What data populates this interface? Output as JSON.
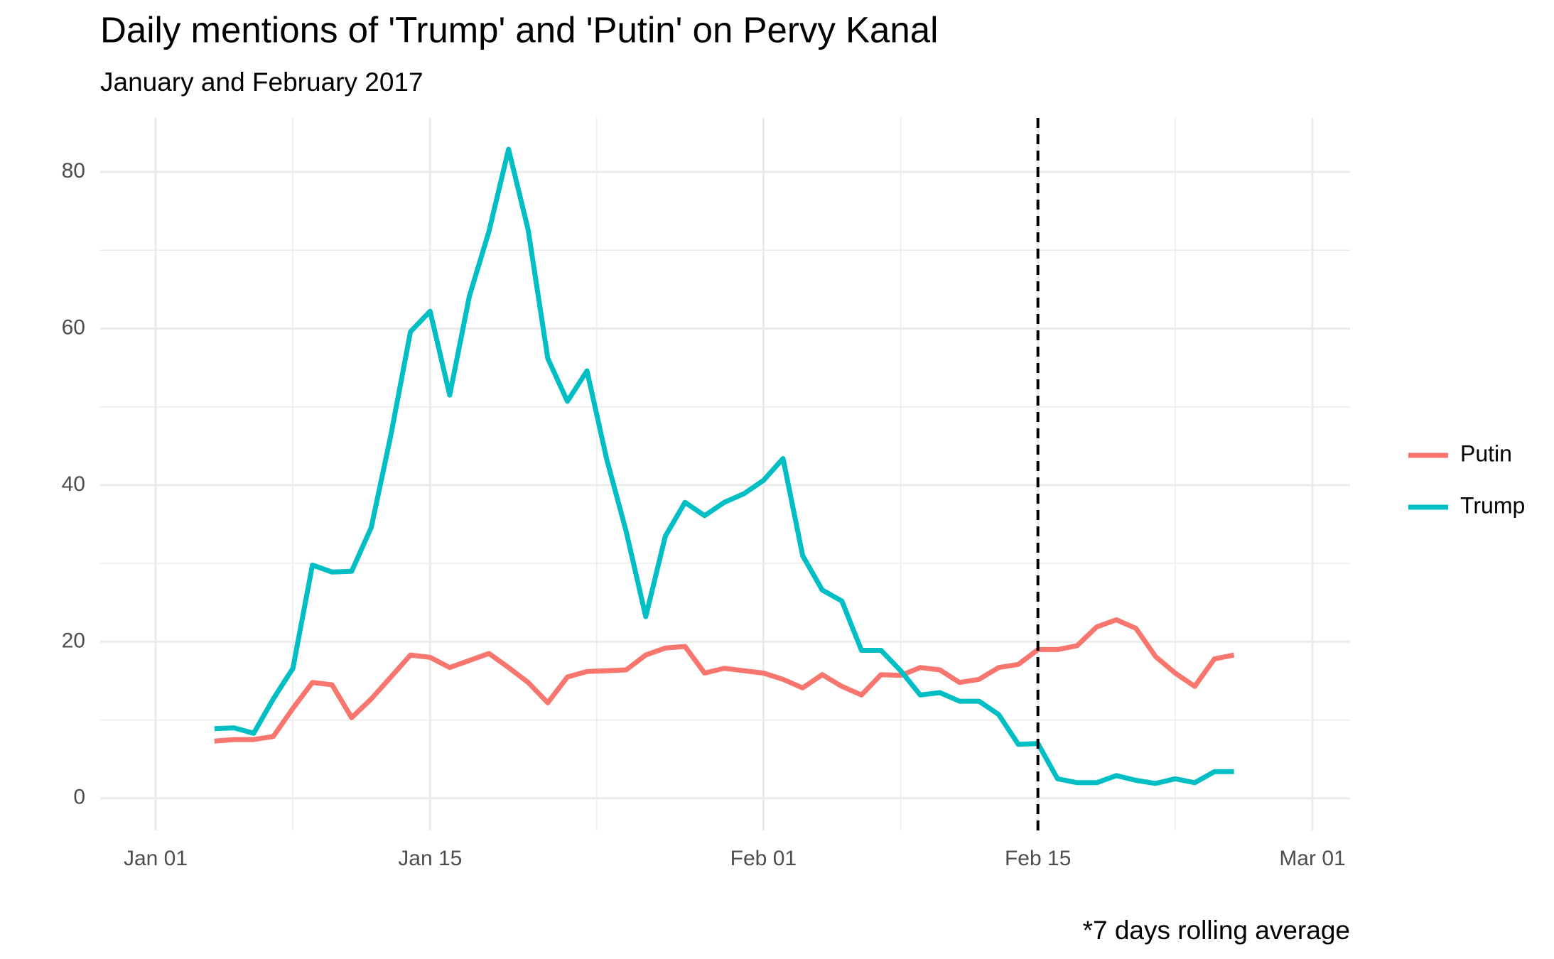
{
  "chart_data": {
    "type": "line",
    "title": "Daily mentions of 'Trump' and 'Putin' on Pervy Kanal",
    "subtitle": "January and February 2017",
    "caption": "*7 days rolling average",
    "x": [
      "Jan 04",
      "Jan 05",
      "Jan 06",
      "Jan 07",
      "Jan 08",
      "Jan 09",
      "Jan 10",
      "Jan 11",
      "Jan 12",
      "Jan 13",
      "Jan 14",
      "Jan 15",
      "Jan 16",
      "Jan 17",
      "Jan 18",
      "Jan 19",
      "Jan 20",
      "Jan 21",
      "Jan 22",
      "Jan 23",
      "Jan 24",
      "Jan 25",
      "Jan 26",
      "Jan 27",
      "Jan 28",
      "Jan 29",
      "Jan 30",
      "Jan 31",
      "Feb 01",
      "Feb 02",
      "Feb 03",
      "Feb 04",
      "Feb 05",
      "Feb 06",
      "Feb 07",
      "Feb 08",
      "Feb 09",
      "Feb 10",
      "Feb 11",
      "Feb 12",
      "Feb 13",
      "Feb 14",
      "Feb 15",
      "Feb 16",
      "Feb 17",
      "Feb 18",
      "Feb 19",
      "Feb 20",
      "Feb 21",
      "Feb 22",
      "Feb 23",
      "Feb 24",
      "Feb 25"
    ],
    "series": [
      {
        "name": "Putin",
        "color": "#F8766D",
        "values": [
          7.3,
          7.5,
          7.5,
          7.9,
          11.5,
          14.8,
          14.5,
          10.3,
          12.7,
          15.5,
          18.3,
          18.0,
          16.7,
          17.6,
          18.5,
          16.7,
          14.8,
          12.2,
          15.5,
          16.2,
          16.3,
          16.4,
          18.3,
          19.2,
          19.4,
          16.0,
          16.6,
          16.3,
          16.0,
          15.2,
          14.1,
          15.8,
          14.3,
          13.2,
          15.8,
          15.7,
          16.7,
          16.4,
          14.8,
          15.2,
          16.7,
          17.1,
          19.0,
          19.0,
          19.5,
          21.9,
          22.8,
          21.7,
          18.1,
          16.0,
          14.3,
          17.8,
          18.3
        ]
      },
      {
        "name": "Trump",
        "color": "#00BFC4",
        "values": [
          8.9,
          9.0,
          8.3,
          12.7,
          16.6,
          29.8,
          28.9,
          29.0,
          34.6,
          46.4,
          59.6,
          62.2,
          51.5,
          64.1,
          72.4,
          82.9,
          72.6,
          56.2,
          50.7,
          54.6,
          43.4,
          34.1,
          23.2,
          33.5,
          37.8,
          36.1,
          37.8,
          38.9,
          40.6,
          43.4,
          31.0,
          26.6,
          25.2,
          18.9,
          18.9,
          16.3,
          13.2,
          13.5,
          12.4,
          12.4,
          10.7,
          6.9,
          7.0,
          2.5,
          2.0,
          2.0,
          2.9,
          2.3,
          1.9,
          2.5,
          2.0,
          3.4,
          3.4
        ]
      }
    ],
    "xlim": [
      "Jan 01",
      "Mar 01"
    ],
    "xticks": [
      "Jan 01",
      "Jan 15",
      "Feb 01",
      "Feb 15",
      "Mar 01"
    ],
    "ylim": [
      -4.1,
      86.9
    ],
    "yticks": [
      0,
      20,
      40,
      60,
      80
    ],
    "vline": "Feb 15",
    "grid": true,
    "legend": "right"
  }
}
